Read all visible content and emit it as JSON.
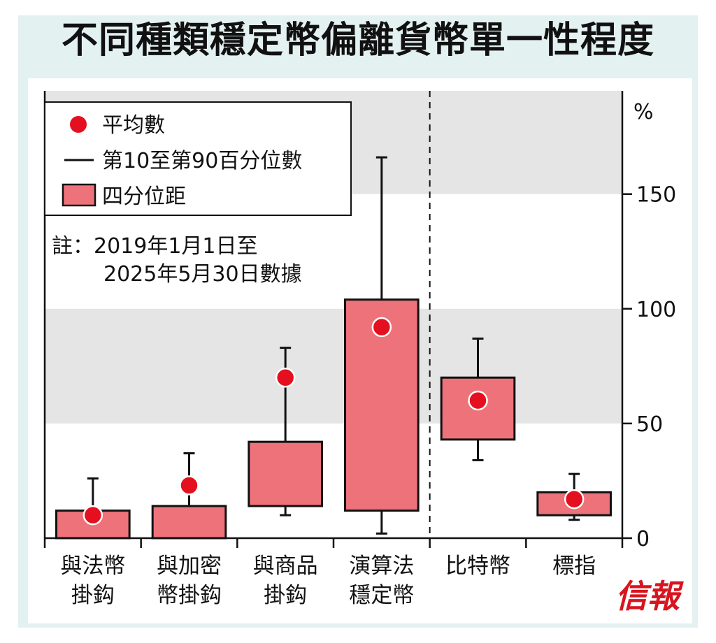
{
  "title": "不同種類穩定幣偏離貨幣單一性程度",
  "logo": "信報",
  "legend": {
    "mean": "平均數",
    "range": "第10至第90百分位數",
    "iqr": "四分位距"
  },
  "note": {
    "line1": "註：2019年1月1日至",
    "line2": "2025年5月30日數據"
  },
  "colors": {
    "box_fill": "#ee727a",
    "mean_dot": "#e5101f",
    "band": "#e5e5e5"
  },
  "chart_data": {
    "type": "box",
    "y_unit_label": "%",
    "ylim": [
      0,
      195
    ],
    "y_ticks": [
      0,
      50,
      100,
      150
    ],
    "shaded_bands": [
      [
        50,
        100
      ],
      [
        150,
        195
      ]
    ],
    "divider_after_category_index": 3,
    "categories": [
      {
        "label_lines": [
          "與法幣",
          "掛鈎"
        ],
        "p10": 0,
        "q1": 0,
        "q3": 12,
        "p90": 26,
        "mean": 10
      },
      {
        "label_lines": [
          "與加密",
          "幣掛鈎"
        ],
        "p10": 0,
        "q1": 0,
        "q3": 14,
        "p90": 37,
        "mean": 23
      },
      {
        "label_lines": [
          "與商品",
          "掛鈎"
        ],
        "p10": 10,
        "q1": 14,
        "q3": 42,
        "p90": 83,
        "mean": 70
      },
      {
        "label_lines": [
          "演算法",
          "穩定幣"
        ],
        "p10": 2,
        "q1": 12,
        "q3": 104,
        "p90": 166,
        "mean": 92
      },
      {
        "label_lines": [
          "比特幣"
        ],
        "p10": 34,
        "q1": 43,
        "q3": 70,
        "p90": 87,
        "mean": 60
      },
      {
        "label_lines": [
          "標指"
        ],
        "p10": 8,
        "q1": 10,
        "q3": 20,
        "p90": 28,
        "mean": 17
      }
    ]
  }
}
